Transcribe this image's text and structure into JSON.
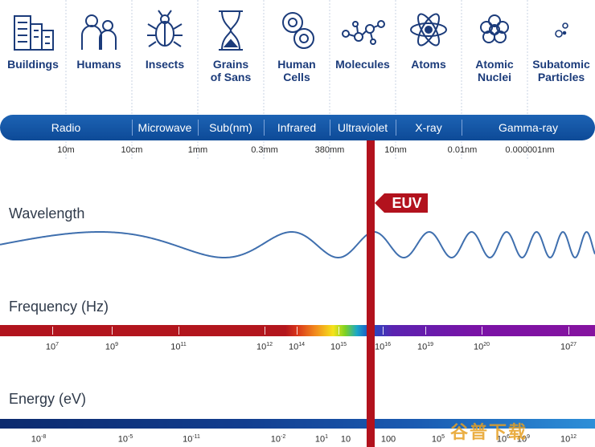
{
  "objects": [
    {
      "label": "Buildings",
      "icon": "buildings-icon"
    },
    {
      "label": "Humans",
      "icon": "humans-icon"
    },
    {
      "label": "Insects",
      "icon": "insect-icon"
    },
    {
      "label": "Grains of Sans",
      "icon": "hourglass-icon"
    },
    {
      "label": "Human Cells",
      "icon": "cells-icon"
    },
    {
      "label": "Molecules",
      "icon": "molecule-icon"
    },
    {
      "label": "Atoms",
      "icon": "atom-icon"
    },
    {
      "label": "Atomic Nuclei",
      "icon": "nucleus-icon"
    },
    {
      "label": "Subatomic Particles",
      "icon": "particles-icon"
    }
  ],
  "bands": [
    "Radio",
    "Microwave",
    "Sub(nm)",
    "Infrared",
    "Ultraviolet",
    "X-ray",
    "Gamma-ray"
  ],
  "wavelengths": [
    "10m",
    "10cm",
    "1mm",
    "0.3mm",
    "380mm",
    "10nm",
    "0.01nm",
    "0.000001nm"
  ],
  "sections": {
    "wavelength": "Wavelength",
    "frequency": "Frequency (Hz)",
    "energy": "Energy (eV)"
  },
  "frequency_labels": [
    {
      "base": "10",
      "exp": "7"
    },
    {
      "base": "10",
      "exp": "9"
    },
    {
      "base": "10",
      "exp": "11"
    },
    {
      "base": "10",
      "exp": "12"
    },
    {
      "base": "10",
      "exp": "14"
    },
    {
      "base": "10",
      "exp": "15"
    },
    {
      "base": "10",
      "exp": "16"
    },
    {
      "base": "10",
      "exp": "19"
    },
    {
      "base": "10",
      "exp": "20"
    },
    {
      "base": "10",
      "exp": "27"
    }
  ],
  "energy_labels": [
    {
      "base": "10",
      "exp": "-8"
    },
    {
      "base": "10",
      "exp": "-5"
    },
    {
      "base": "10",
      "exp": "-11"
    },
    {
      "base": "10",
      "exp": "-2"
    },
    {
      "base": "10",
      "exp": "1"
    },
    {
      "base": "10",
      "exp": ""
    },
    {
      "base": "100",
      "exp": ""
    },
    {
      "base": "10",
      "exp": "5"
    },
    {
      "base": "10",
      "exp": "6"
    },
    {
      "base": "10",
      "exp": "9"
    },
    {
      "base": "10",
      "exp": "12"
    }
  ],
  "euv_label": "EUV",
  "watermark": "谷普下载",
  "colors": {
    "band": "#1d63b4",
    "euv": "#b2121d",
    "wave": "#3f6fae",
    "icon": "#1b3b7a"
  }
}
